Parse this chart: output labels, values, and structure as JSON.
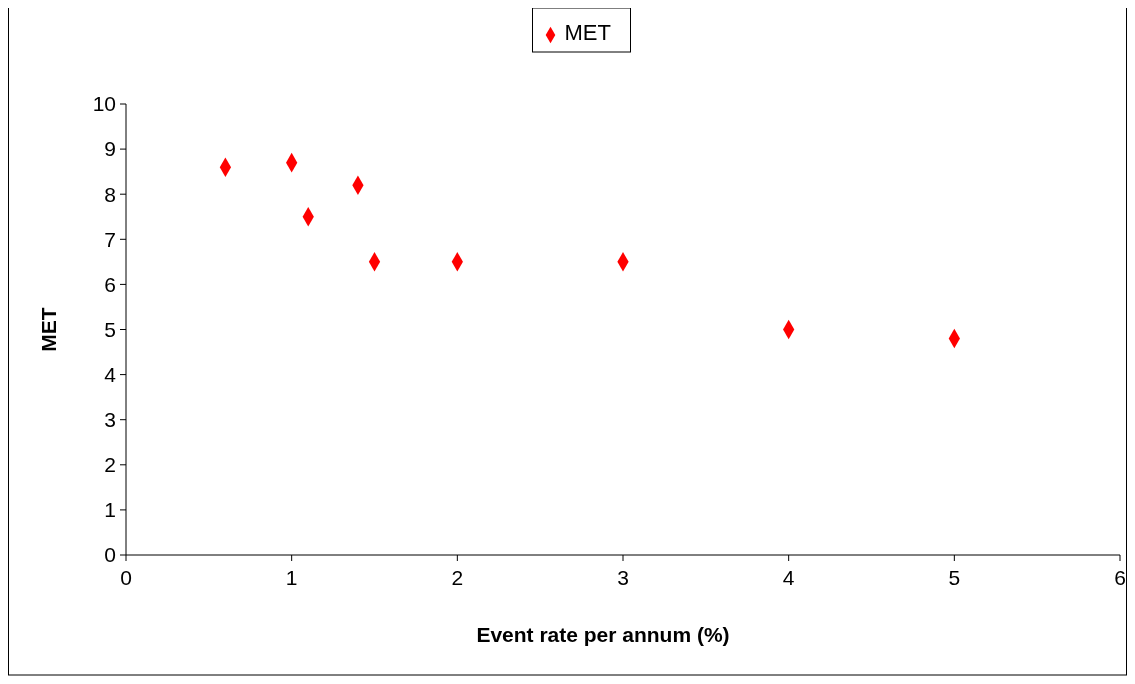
{
  "chart_data": {
    "type": "scatter",
    "xlabel": "Event rate per annum (%)",
    "ylabel": "MET",
    "x": [
      0.6,
      1.0,
      1.1,
      1.4,
      1.5,
      2,
      3,
      4,
      5
    ],
    "series": [
      {
        "name": "MET",
        "color": "#ff0000",
        "values": [
          8.6,
          8.7,
          7.5,
          8.2,
          6.5,
          6.5,
          6.5,
          5,
          4.8
        ]
      }
    ],
    "xlim": [
      0,
      6
    ],
    "xticks": [
      0,
      1,
      2,
      3,
      4,
      5,
      6
    ],
    "ylim": [
      0,
      10
    ],
    "yticks": [
      0,
      1,
      2,
      3,
      4,
      5,
      6,
      7,
      8,
      9,
      10
    ],
    "grid": false,
    "legend": "top",
    "marker": "diamond"
  }
}
